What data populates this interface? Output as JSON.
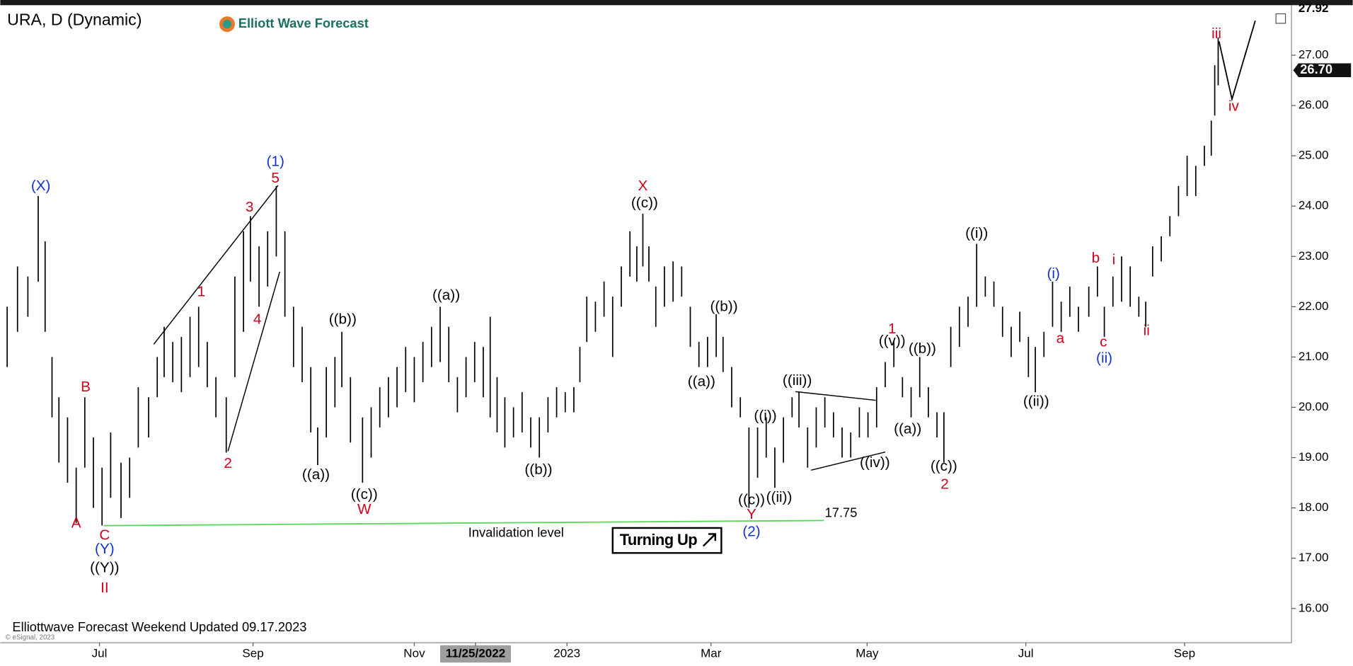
{
  "chart_data": {
    "type": "hl-bar",
    "title": "URA, D (Dynamic)",
    "logo": "Elliott Wave Forecast",
    "footer": "Elliottwave Forecast Weekend Updated 09.17.2023",
    "copyright": "© eSignal, 2023",
    "signal": "Turning Up",
    "color": "#000000",
    "xlim": [
      0,
      1497
    ],
    "ylim": [
      15.32,
      27.96
    ],
    "xticks": [
      {
        "value": 115,
        "label": "Jul"
      },
      {
        "value": 293,
        "label": "Sep"
      },
      {
        "value": 480,
        "label": "Nov"
      },
      {
        "value": 551,
        "label": "11/25/2022"
      },
      {
        "value": 657,
        "label": "2023"
      },
      {
        "value": 824,
        "label": "Mar"
      },
      {
        "value": 1005,
        "label": "May"
      },
      {
        "value": 1189,
        "label": "Jul"
      },
      {
        "value": 1373,
        "label": "Sep"
      }
    ],
    "yticks": [
      {
        "value": 16,
        "label": "16.00"
      },
      {
        "value": 17,
        "label": "17.00"
      },
      {
        "value": 18,
        "label": "18.00"
      },
      {
        "value": 19,
        "label": "19.00"
      },
      {
        "value": 20,
        "label": "20.00"
      },
      {
        "value": 21,
        "label": "21.00"
      },
      {
        "value": 22,
        "label": "22.00"
      },
      {
        "value": 23,
        "label": "23.00"
      },
      {
        "value": 24,
        "label": "24.00"
      },
      {
        "value": 25,
        "label": "25.00"
      },
      {
        "value": 26,
        "label": "26.00"
      },
      {
        "value": 27,
        "label": "27.00"
      }
    ],
    "price_high": 27.92,
    "last_price": {
      "value": 26.7,
      "label": "26.70"
    },
    "invalidation": {
      "value": 17.75,
      "label": "Invalidation level"
    },
    "x": [
      8,
      20,
      32,
      44,
      52,
      60,
      68,
      78,
      88,
      98,
      108,
      118,
      128,
      140,
      150,
      160,
      172,
      182,
      190,
      200,
      210,
      220,
      230,
      240,
      250,
      262,
      272,
      282,
      290,
      300,
      310,
      320,
      330,
      340,
      350,
      360,
      368,
      378,
      388,
      396,
      406,
      420,
      430,
      440,
      450,
      460,
      470,
      480,
      490,
      500,
      510,
      520,
      530,
      540,
      550,
      560,
      568,
      576,
      585,
      595,
      605,
      615,
      625,
      635,
      645,
      655,
      665,
      672,
      680,
      690,
      700,
      710,
      720,
      730,
      738,
      745,
      752,
      760,
      770,
      780,
      790,
      800,
      810,
      820,
      830,
      838,
      848,
      858,
      868,
      878,
      888,
      898,
      908,
      918,
      926,
      936,
      946,
      956,
      966,
      976,
      986,
      996,
      1006,
      1016,
      1026,
      1036,
      1046,
      1056,
      1066,
      1076,
      1086,
      1094,
      1102,
      1112,
      1122,
      1132,
      1142,
      1152,
      1162,
      1172,
      1182,
      1192,
      1200,
      1210,
      1220,
      1230,
      1240,
      1250,
      1262,
      1272,
      1280,
      1290,
      1300,
      1310,
      1320,
      1328,
      1336,
      1346,
      1356,
      1366,
      1376,
      1386,
      1396,
      1404,
      1408,
      1412
    ],
    "low": [
      20.8,
      21.5,
      21.8,
      22.5,
      21.5,
      19.8,
      18.9,
      18.5,
      17.7,
      18.8,
      18.0,
      17.65,
      18.2,
      17.8,
      18.2,
      19.2,
      19.4,
      20.2,
      20.6,
      20.5,
      20.3,
      20.6,
      20.8,
      20.4,
      19.8,
      19.1,
      20.6,
      21.5,
      22.5,
      22.0,
      22.4,
      23.0,
      21.8,
      20.8,
      20.5,
      19.5,
      18.85,
      19.4,
      20.0,
      20.4,
      19.3,
      18.5,
      19.0,
      19.6,
      19.8,
      20.0,
      20.3,
      20.1,
      20.5,
      20.8,
      20.9,
      20.5,
      19.9,
      20.2,
      20.5,
      20.2,
      19.8,
      19.5,
      19.2,
      19.4,
      19.5,
      19.2,
      19.0,
      19.5,
      19.8,
      19.9,
      19.9,
      20.5,
      21.3,
      21.5,
      21.8,
      21.0,
      22.0,
      22.6,
      22.5,
      22.8,
      22.5,
      21.6,
      22.0,
      22.1,
      22.2,
      21.2,
      20.8,
      20.8,
      21.0,
      20.7,
      20.0,
      19.8,
      18.0,
      18.6,
      19.0,
      18.4,
      18.9,
      19.8,
      19.6,
      18.8,
      19.2,
      19.6,
      19.4,
      19.0,
      19.0,
      19.4,
      19.4,
      19.6,
      20.4,
      20.8,
      20.2,
      19.8,
      20.2,
      19.8,
      19.4,
      18.9,
      20.8,
      21.2,
      21.6,
      22.0,
      22.2,
      22.0,
      21.4,
      21.0,
      21.3,
      20.6,
      20.3,
      21.0,
      21.6,
      21.5,
      21.8,
      21.5,
      21.8,
      22.2,
      21.4,
      22.0,
      22.1,
      22.0,
      21.8,
      21.6,
      22.6,
      22.9,
      23.4,
      23.8,
      24.2,
      24.2,
      24.8,
      25.0,
      25.8,
      26.4
    ],
    "high": [
      22.0,
      22.8,
      22.6,
      24.2,
      23.3,
      21.0,
      20.2,
      19.8,
      18.8,
      20.2,
      19.4,
      18.8,
      19.5,
      18.9,
      19.0,
      20.4,
      20.2,
      21.0,
      21.6,
      21.3,
      21.4,
      21.8,
      22.0,
      21.3,
      20.6,
      20.2,
      22.6,
      23.5,
      23.8,
      23.2,
      23.5,
      24.4,
      23.5,
      22.0,
      21.6,
      20.8,
      19.6,
      20.8,
      21.0,
      21.5,
      20.6,
      19.8,
      20.0,
      20.4,
      20.6,
      20.8,
      21.2,
      21.0,
      21.3,
      21.6,
      22.0,
      21.6,
      20.6,
      21.0,
      21.3,
      21.2,
      21.8,
      20.6,
      20.2,
      20.0,
      20.3,
      19.8,
      19.8,
      20.2,
      20.4,
      20.3,
      20.4,
      21.2,
      22.2,
      22.1,
      22.5,
      22.2,
      22.8,
      23.5,
      23.2,
      23.85,
      23.2,
      22.4,
      22.8,
      22.9,
      22.8,
      22.0,
      21.3,
      21.4,
      21.85,
      21.4,
      20.8,
      20.2,
      19.6,
      19.6,
      19.8,
      19.2,
      19.8,
      20.2,
      20.3,
      19.6,
      20.0,
      20.2,
      19.9,
      19.6,
      19.5,
      20.0,
      19.9,
      20.4,
      20.9,
      21.3,
      20.6,
      20.4,
      21.0,
      20.4,
      19.9,
      19.9,
      21.6,
      22.0,
      22.2,
      23.25,
      22.6,
      22.5,
      22.0,
      21.6,
      21.9,
      21.4,
      21.2,
      21.5,
      22.5,
      22.1,
      22.4,
      22.0,
      22.4,
      22.8,
      22.0,
      22.6,
      23.0,
      22.8,
      22.2,
      22.1,
      23.2,
      23.4,
      23.8,
      24.4,
      25.0,
      24.8,
      25.2,
      25.7,
      26.8,
      27.35
    ],
    "annotations": [
      "(X)",
      "B",
      "A",
      "C",
      "(Y)",
      "((Y))",
      "II",
      "1",
      "2",
      "3",
      "4",
      "5",
      "(1)",
      "((a))",
      "((b))",
      "((c))",
      "W",
      "((a))",
      "((b))",
      "X",
      "((c))",
      "((a))",
      "((b))",
      "((c))",
      "Y",
      "(2)",
      "((i))",
      "((ii))",
      "((iii))",
      "((iv))",
      "((v))",
      "1",
      "((b))",
      "((a))",
      "((c))",
      "2",
      "((i))",
      "((ii))",
      "(i)",
      "a",
      "b",
      "c",
      "(ii)",
      "i",
      "ii",
      "iii",
      "iv"
    ]
  }
}
